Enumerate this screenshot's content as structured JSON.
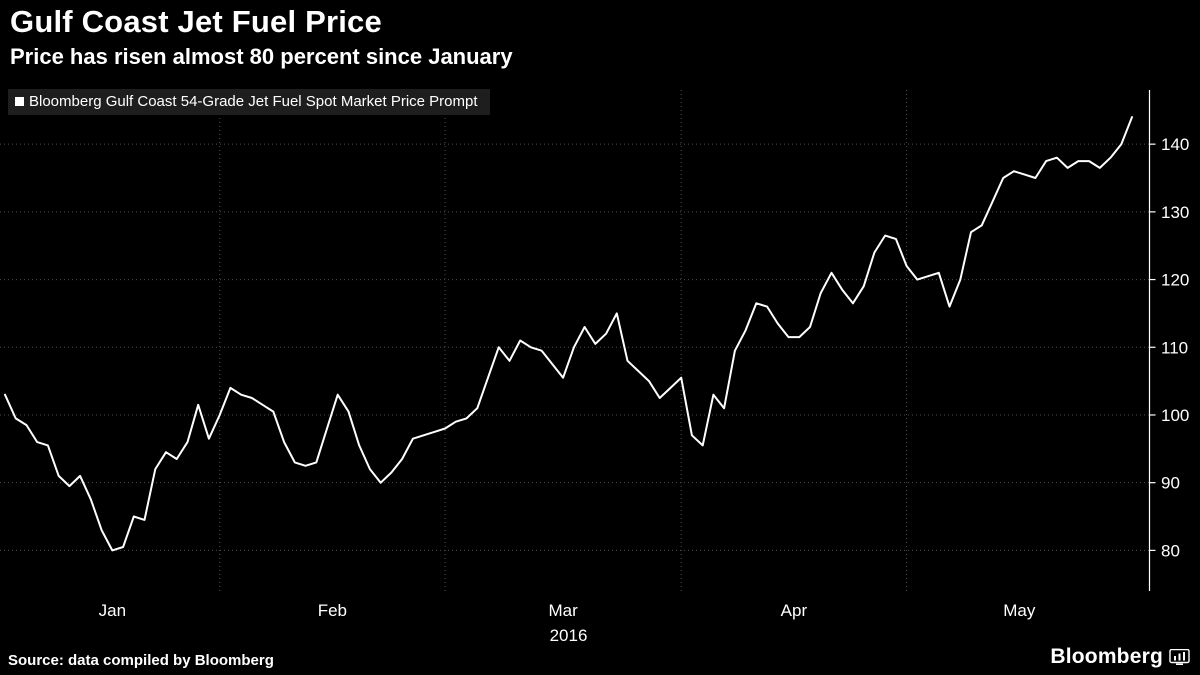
{
  "header": {
    "title": "Gulf Coast Jet Fuel Price",
    "subtitle": "Price has risen almost 80 percent since January"
  },
  "footer": {
    "source": "Source: data compiled by Bloomberg",
    "brand": "Bloomberg"
  },
  "colors": {
    "background": "#000000",
    "line": "#ffffff",
    "grid": "#4d4d4d",
    "axis": "#ffffff",
    "text": "#ffffff",
    "legend_background": "#1e1e1e"
  },
  "chart_data": {
    "type": "line",
    "title": "Gulf Coast Jet Fuel Price",
    "subtitle": "Price has risen almost 80 percent since January",
    "legend_entries": [
      "Bloomberg Gulf Coast 54-Grade Jet Fuel Spot Market Price Prompt"
    ],
    "legend_position": "top-left",
    "grid": true,
    "xlabel": "2016",
    "ylabel": "",
    "ylim": [
      74,
      148
    ],
    "yticks": [
      80,
      90,
      100,
      110,
      120,
      130,
      140
    ],
    "y_axis_side": "right",
    "x_months": [
      {
        "label": "Jan",
        "start": 0
      },
      {
        "label": "Feb",
        "start": 20
      },
      {
        "label": "Mar",
        "start": 41
      },
      {
        "label": "Apr",
        "start": 63
      },
      {
        "label": "May",
        "start": 84
      }
    ],
    "series": [
      {
        "name": "Bloomberg Gulf Coast 54-Grade Jet Fuel Spot Market Price Prompt",
        "values": [
          103,
          99.5,
          98.5,
          96,
          95.5,
          91,
          89.5,
          91,
          87.5,
          83,
          80,
          80.5,
          85,
          84.5,
          92,
          94.5,
          93.5,
          96,
          101.5,
          96.5,
          100,
          104,
          103,
          102.5,
          101.5,
          100.5,
          96,
          93,
          92.5,
          93,
          98,
          103,
          100.5,
          95.5,
          92,
          90,
          91.5,
          93.5,
          96.5,
          97,
          97.5,
          98,
          99,
          99.5,
          101,
          105.5,
          110,
          108,
          111,
          110,
          109.5,
          107.5,
          105.5,
          110,
          113,
          110.5,
          112,
          115,
          108,
          106.5,
          105,
          102.5,
          104,
          105.5,
          97,
          95.5,
          103,
          101,
          109.5,
          112.5,
          116.5,
          116,
          113.5,
          111.5,
          111.5,
          113,
          118,
          121,
          118.5,
          116.5,
          119,
          124,
          126.5,
          126,
          122,
          120,
          120.5,
          121,
          116,
          120,
          127,
          128,
          131.5,
          135,
          136,
          135.5,
          135,
          137.5,
          138,
          136.5,
          137.5,
          137.5,
          136.5,
          138,
          140,
          144
        ]
      }
    ]
  }
}
